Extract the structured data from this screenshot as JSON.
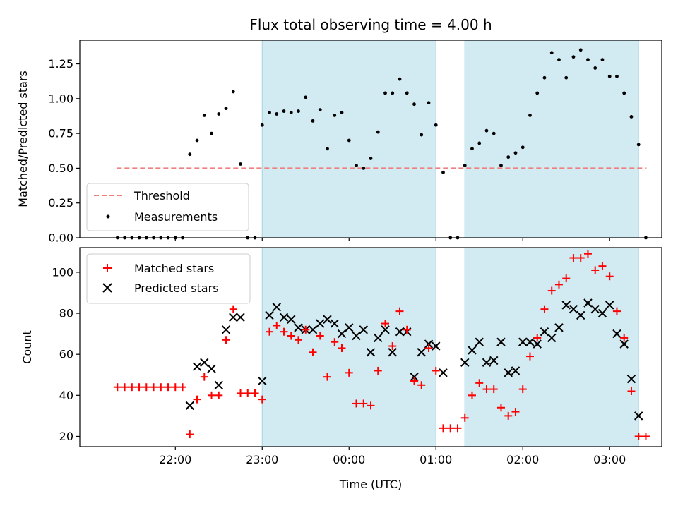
{
  "title": "Flux total observing time = 4.00 h",
  "colors": {
    "threshold": "#f08080",
    "measurements": "#000000",
    "matched": "#ff0000",
    "predicted": "#000000",
    "shade": "#add8e6"
  },
  "chart_data": [
    {
      "type": "scatter",
      "ylabel": "Matched/Predicted stars",
      "xlabel": "",
      "ylim": [
        0,
        1.42
      ],
      "yticks": [
        "0.00",
        "0.25",
        "0.50",
        "0.75",
        "1.00",
        "1.25"
      ],
      "ytick_values": [
        0,
        0.25,
        0.5,
        0.75,
        1.0,
        1.25
      ],
      "legend_position": "lower-left",
      "legend": [
        "Threshold",
        "Measurements"
      ],
      "threshold": {
        "name": "Threshold",
        "y": 0.5,
        "x_range": [
          "21:20",
          "03:25"
        ]
      },
      "series": [
        {
          "name": "Measurements",
          "x": [
            "21:20",
            "21:25",
            "21:30",
            "21:35",
            "21:40",
            "21:45",
            "21:50",
            "21:55",
            "22:00",
            "22:05",
            "22:10",
            "22:15",
            "22:20",
            "22:25",
            "22:30",
            "22:35",
            "22:40",
            "22:45",
            "22:50",
            "22:55",
            "23:00",
            "23:05",
            "23:10",
            "23:15",
            "23:20",
            "23:25",
            "23:30",
            "23:35",
            "23:40",
            "23:45",
            "23:50",
            "23:55",
            "00:00",
            "00:05",
            "00:10",
            "00:15",
            "00:20",
            "00:25",
            "00:30",
            "00:35",
            "00:40",
            "00:45",
            "00:50",
            "00:55",
            "01:00",
            "01:05",
            "01:10",
            "01:15",
            "01:20",
            "01:25",
            "01:30",
            "01:35",
            "01:40",
            "01:45",
            "01:50",
            "01:55",
            "02:00",
            "02:05",
            "02:10",
            "02:15",
            "02:20",
            "02:25",
            "02:30",
            "02:35",
            "02:40",
            "02:45",
            "02:50",
            "02:55",
            "03:00",
            "03:05",
            "03:10",
            "03:15",
            "03:20",
            "03:25"
          ],
          "values": [
            0,
            0,
            0,
            0,
            0,
            0,
            0,
            0,
            0,
            0,
            0.6,
            0.7,
            0.88,
            0.75,
            0.89,
            0.93,
            1.05,
            0.53,
            0,
            0,
            0.81,
            0.9,
            0.89,
            0.91,
            0.9,
            0.91,
            1.01,
            0.84,
            0.92,
            0.64,
            0.88,
            0.9,
            0.7,
            0.52,
            0.5,
            0.57,
            0.76,
            1.04,
            1.04,
            1.14,
            1.04,
            0.96,
            0.74,
            0.97,
            0.81,
            0.47,
            0,
            0,
            0.52,
            0.64,
            0.68,
            0.77,
            0.75,
            0.52,
            0.58,
            0.61,
            0.65,
            0.88,
            1.04,
            1.15,
            1.33,
            1.28,
            1.15,
            1.3,
            1.35,
            1.28,
            1.22,
            1.28,
            1.16,
            1.16,
            1.04,
            0.87,
            0.67,
            0
          ]
        }
      ],
      "shaded_intervals": [
        [
          "23:00",
          "01:00"
        ],
        [
          "01:20",
          "03:20"
        ]
      ]
    },
    {
      "type": "scatter",
      "ylabel": "Count",
      "xlabel": "Time (UTC)",
      "ylim": [
        15,
        112
      ],
      "yticks": [
        "20",
        "40",
        "60",
        "80",
        "100"
      ],
      "ytick_values": [
        20,
        40,
        60,
        80,
        100
      ],
      "xticks": [
        "22:00",
        "23:00",
        "00:00",
        "01:00",
        "02:00",
        "03:00"
      ],
      "legend_position": "upper-left",
      "legend": [
        "Matched stars",
        "Predicted stars"
      ],
      "series": [
        {
          "name": "Matched stars",
          "marker": "+",
          "x": [
            "21:20",
            "21:25",
            "21:30",
            "21:35",
            "21:40",
            "21:45",
            "21:50",
            "21:55",
            "22:00",
            "22:05",
            "22:10",
            "22:15",
            "22:20",
            "22:25",
            "22:30",
            "22:35",
            "22:40",
            "22:45",
            "22:50",
            "22:55",
            "23:00",
            "23:05",
            "23:10",
            "23:15",
            "23:20",
            "23:25",
            "23:30",
            "23:35",
            "23:40",
            "23:45",
            "23:50",
            "23:55",
            "00:00",
            "00:05",
            "00:10",
            "00:15",
            "00:20",
            "00:25",
            "00:30",
            "00:35",
            "00:40",
            "00:45",
            "00:50",
            "00:55",
            "01:00",
            "01:05",
            "01:10",
            "01:15",
            "01:20",
            "01:25",
            "01:30",
            "01:35",
            "01:40",
            "01:45",
            "01:50",
            "01:55",
            "02:00",
            "02:05",
            "02:10",
            "02:15",
            "02:20",
            "02:25",
            "02:30",
            "02:35",
            "02:40",
            "02:45",
            "02:50",
            "02:55",
            "03:00",
            "03:05",
            "03:10",
            "03:15",
            "03:20",
            "03:25"
          ],
          "values": [
            44,
            44,
            44,
            44,
            44,
            44,
            44,
            44,
            44,
            44,
            21,
            38,
            49,
            40,
            40,
            67,
            82,
            41,
            41,
            41,
            38,
            71,
            74,
            71,
            69,
            67,
            72,
            61,
            69,
            49,
            66,
            63,
            51,
            36,
            36,
            35,
            52,
            75,
            64,
            81,
            72,
            47,
            45,
            63,
            52,
            24,
            24,
            24,
            29,
            40,
            46,
            43,
            43,
            34,
            30,
            32,
            43,
            59,
            68,
            82,
            91,
            94,
            97,
            107,
            107,
            109,
            101,
            103,
            98,
            81,
            68,
            42,
            20,
            20
          ]
        },
        {
          "name": "Predicted stars",
          "marker": "x",
          "x": [
            "22:10",
            "22:15",
            "22:20",
            "22:25",
            "22:30",
            "22:35",
            "22:40",
            "22:45",
            "23:00",
            "23:05",
            "23:10",
            "23:15",
            "23:20",
            "23:25",
            "23:30",
            "23:35",
            "23:40",
            "23:45",
            "23:50",
            "23:55",
            "00:00",
            "00:05",
            "00:10",
            "00:15",
            "00:20",
            "00:25",
            "00:30",
            "00:35",
            "00:40",
            "00:45",
            "00:50",
            "00:55",
            "01:00",
            "01:05",
            "01:20",
            "01:25",
            "01:30",
            "01:35",
            "01:40",
            "01:45",
            "01:50",
            "01:55",
            "02:00",
            "02:05",
            "02:10",
            "02:15",
            "02:20",
            "02:25",
            "02:30",
            "02:35",
            "02:40",
            "02:45",
            "02:50",
            "02:55",
            "03:00",
            "03:05",
            "03:10",
            "03:15",
            "03:20"
          ],
          "values": [
            35,
            54,
            56,
            53,
            45,
            72,
            78,
            78,
            47,
            79,
            83,
            78,
            77,
            73,
            72,
            72,
            75,
            77,
            75,
            70,
            73,
            69,
            72,
            61,
            68,
            72,
            61,
            71,
            71,
            49,
            61,
            65,
            64,
            51,
            56,
            62,
            66,
            56,
            57,
            66,
            51,
            52,
            66,
            66,
            65,
            71,
            68,
            73,
            84,
            82,
            79,
            85,
            82,
            80,
            84,
            70,
            65,
            48,
            30
          ]
        }
      ],
      "shaded_intervals": [
        [
          "23:00",
          "01:00"
        ],
        [
          "01:20",
          "03:20"
        ]
      ]
    }
  ]
}
